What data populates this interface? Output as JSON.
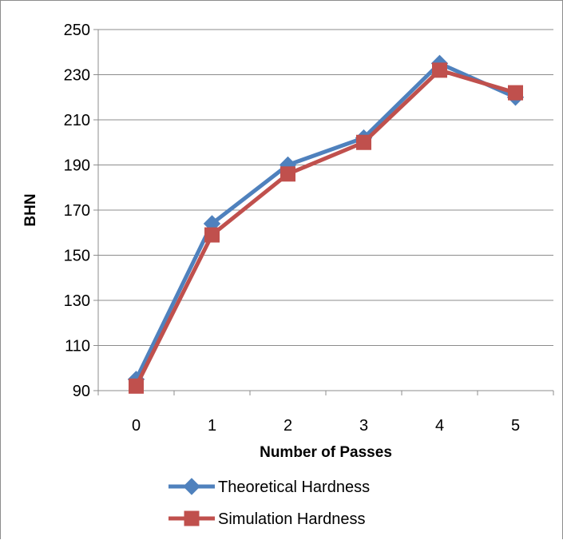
{
  "chart_data": {
    "type": "line",
    "title": "",
    "xlabel": "Number of Passes",
    "ylabel": "BHN",
    "categories": [
      "0",
      "1",
      "2",
      "3",
      "4",
      "5"
    ],
    "ylim": [
      90,
      250
    ],
    "yticks": [
      "90",
      "110",
      "130",
      "150",
      "170",
      "190",
      "210",
      "230",
      "250"
    ],
    "grid": "horizontal",
    "legend_position": "bottom",
    "series": [
      {
        "name": "Theoretical Hardness",
        "marker": "diamond",
        "color": "#4F81BD",
        "values": [
          95,
          164,
          190,
          202,
          235,
          220
        ]
      },
      {
        "name": "Simulation Hardness",
        "marker": "square",
        "color": "#C0504D",
        "values": [
          92,
          159,
          186,
          200,
          232,
          222
        ]
      }
    ]
  }
}
